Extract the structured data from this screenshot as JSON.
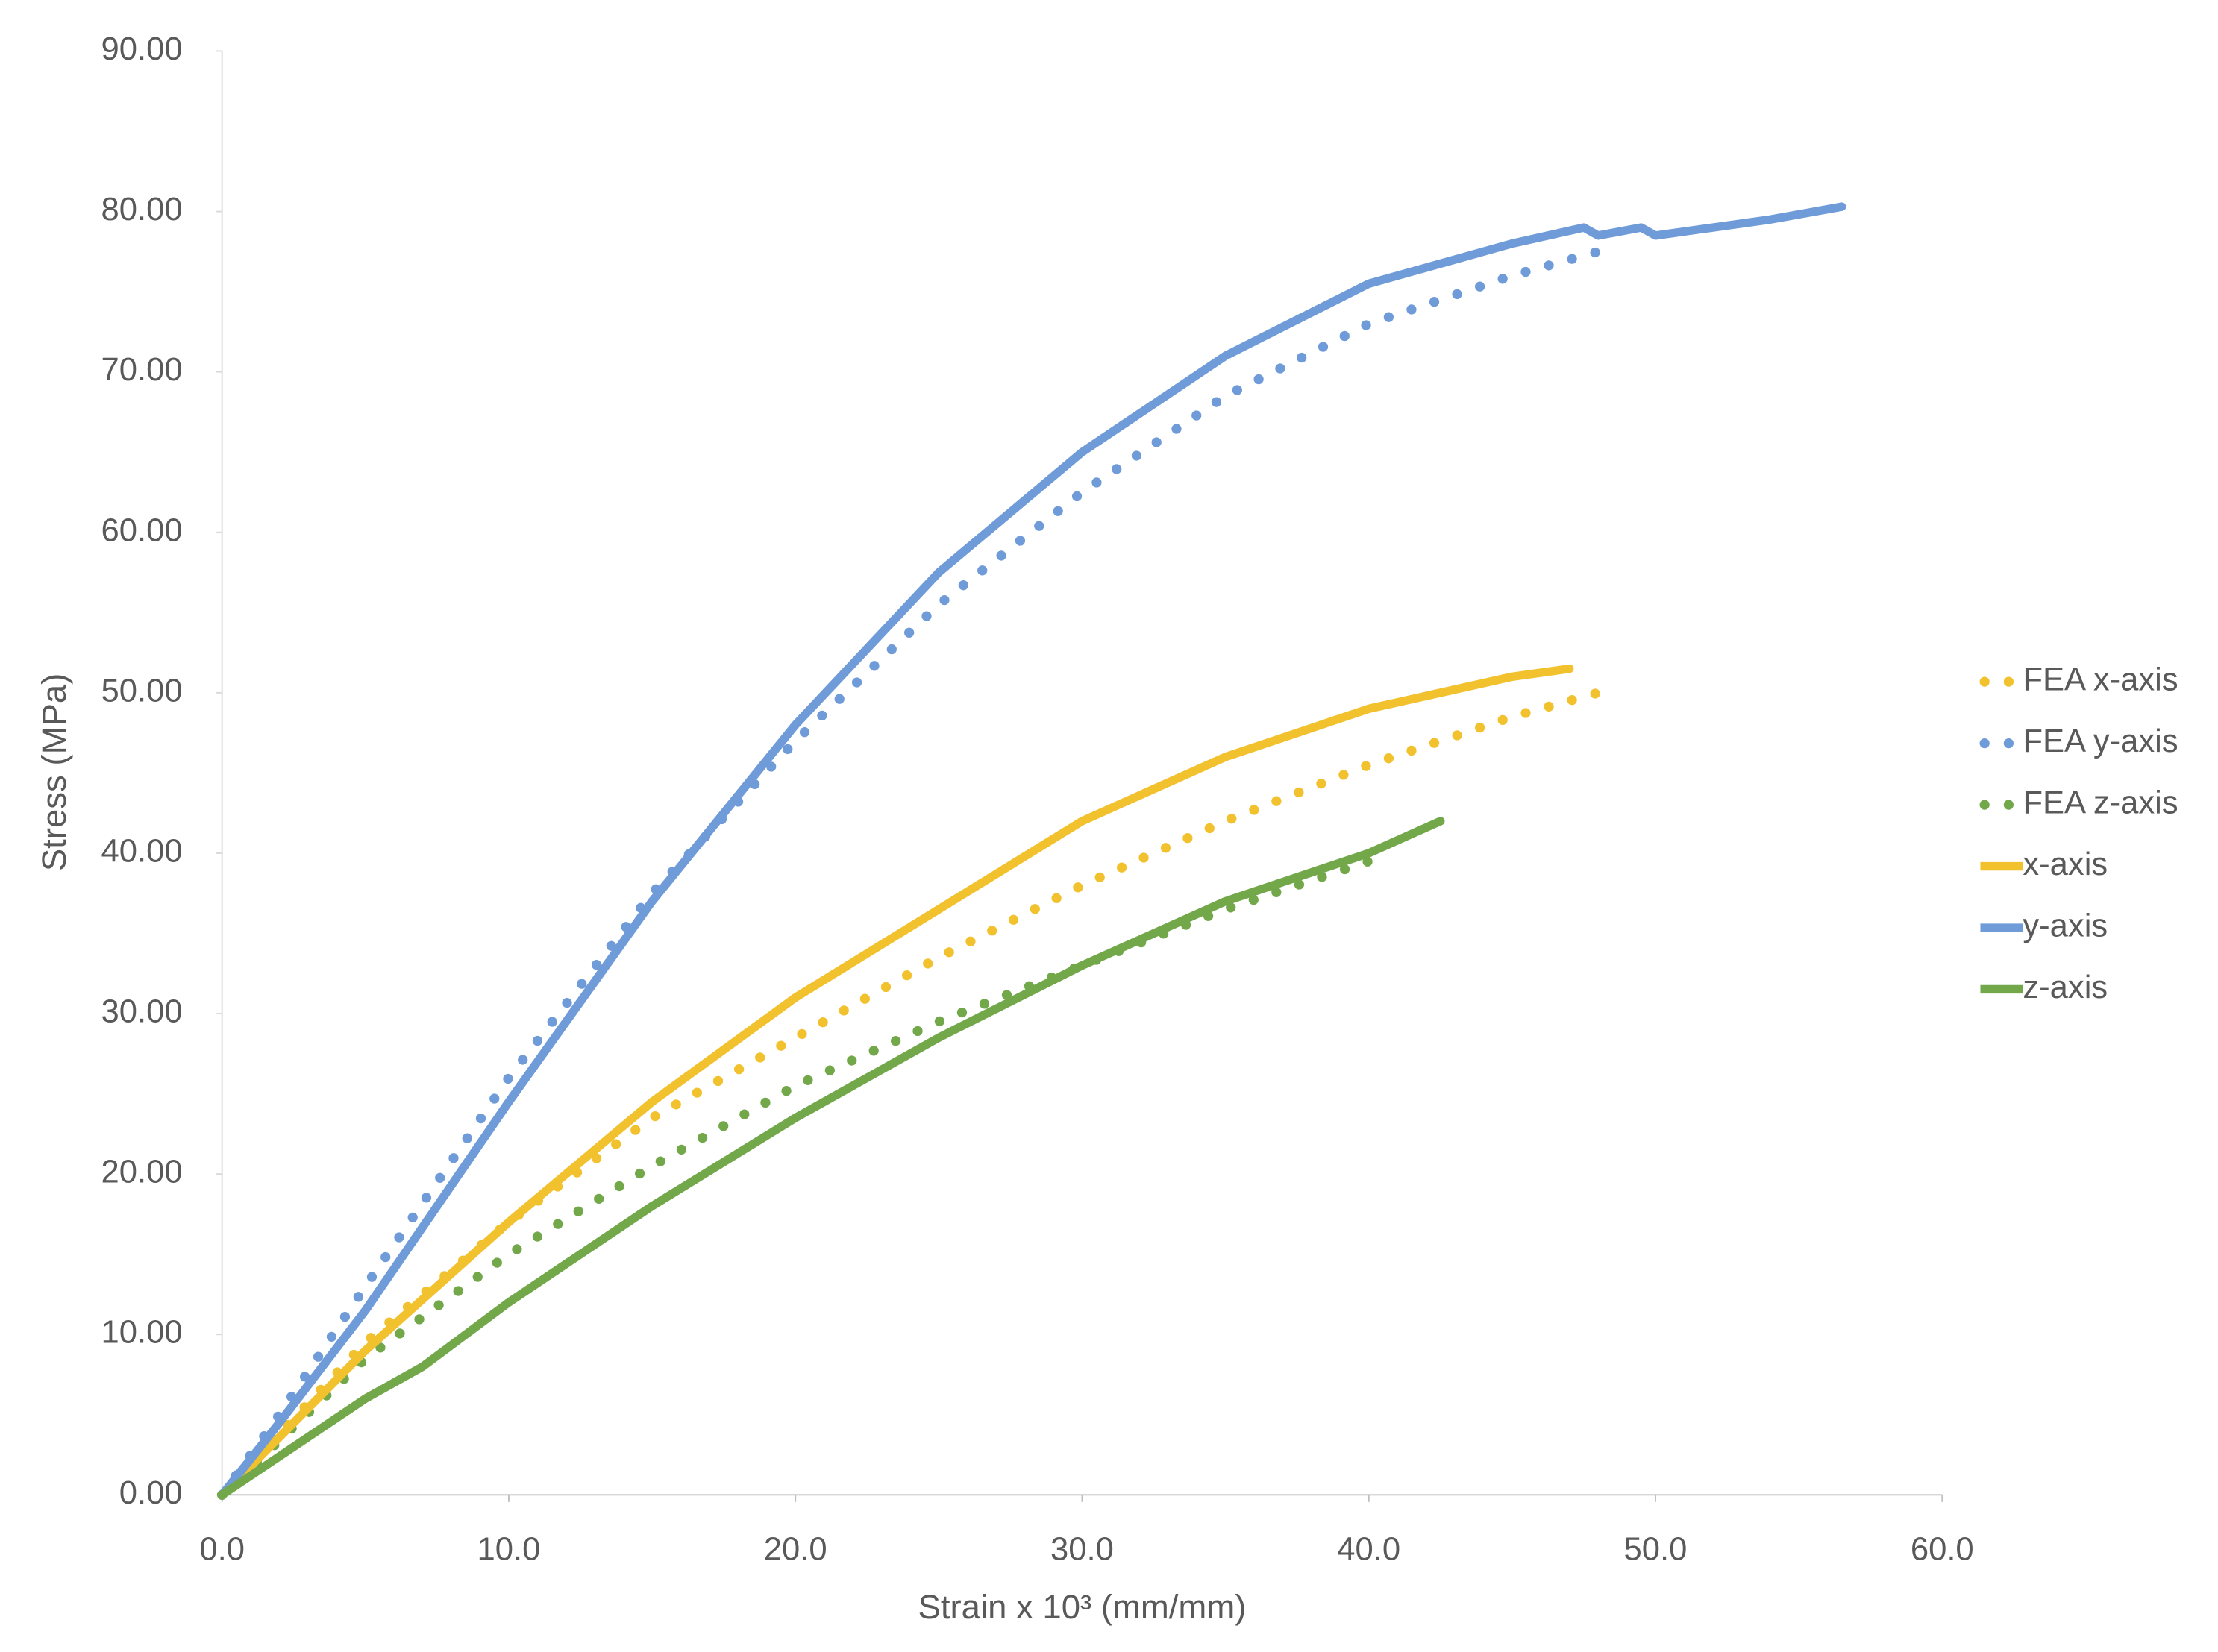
{
  "chart_data": {
    "type": "line",
    "xlabel": "Strain x 10³ (mm/mm)",
    "ylabel": "Stress (MPa)",
    "xlim": [
      0,
      60
    ],
    "ylim": [
      0,
      90
    ],
    "xticks": [
      {
        "value": 0,
        "label": "0.0"
      },
      {
        "value": 10,
        "label": "10.0"
      },
      {
        "value": 20,
        "label": "20.0"
      },
      {
        "value": 30,
        "label": "30.0"
      },
      {
        "value": 40,
        "label": "40.0"
      },
      {
        "value": 50,
        "label": "50.0"
      },
      {
        "value": 60,
        "label": "60.0"
      }
    ],
    "yticks": [
      {
        "value": 0,
        "label": "0.00"
      },
      {
        "value": 10,
        "label": "10.00"
      },
      {
        "value": 20,
        "label": "20.00"
      },
      {
        "value": 30,
        "label": "30.00"
      },
      {
        "value": 40,
        "label": "40.00"
      },
      {
        "value": 50,
        "label": "50.00"
      },
      {
        "value": 60,
        "label": "60.00"
      },
      {
        "value": 70,
        "label": "70.00"
      },
      {
        "value": 80,
        "label": "80.00"
      },
      {
        "value": 90,
        "label": "90.00"
      }
    ],
    "grid": false,
    "legend": "right",
    "series": [
      {
        "name": "FEA x-axis",
        "color": "#f2c12e",
        "style": "dotted",
        "x": [
          0,
          5,
          10,
          15,
          20,
          25,
          30,
          35,
          40,
          45,
          48
        ],
        "values": [
          0,
          9.5,
          17,
          23.5,
          28.5,
          33.5,
          38,
          42,
          45.5,
          48.5,
          50
        ]
      },
      {
        "name": "FEA y-axis",
        "color": "#6f9bd8",
        "style": "dotted",
        "x": [
          0,
          2,
          5,
          10,
          15,
          20,
          25,
          30,
          35,
          40,
          45,
          48
        ],
        "values": [
          0,
          5,
          13,
          26,
          37.5,
          47,
          55.5,
          62.5,
          68.5,
          73,
          76,
          77.5
        ]
      },
      {
        "name": "FEA z-axis",
        "color": "#72a84a",
        "style": "dotted",
        "x": [
          0,
          5,
          10,
          15,
          20,
          25,
          30,
          35,
          40
        ],
        "values": [
          0,
          8.5,
          15,
          20.5,
          25.5,
          29.5,
          33,
          36.5,
          39.5
        ]
      },
      {
        "name": "x-axis",
        "color": "#f2c12e",
        "style": "solid",
        "x": [
          0,
          5,
          10,
          15,
          20,
          25,
          30,
          35,
          40,
          45,
          47
        ],
        "values": [
          0,
          9,
          17,
          24.5,
          31,
          36.5,
          42,
          46,
          49,
          51,
          51.5
        ]
      },
      {
        "name": "y-axis",
        "color": "#6f9bd8",
        "style": "solid",
        "x": [
          0,
          2,
          5,
          10,
          15,
          20,
          25,
          30,
          35,
          40,
          45,
          47.5,
          48,
          49.5,
          50,
          52,
          54,
          56.5
        ],
        "values": [
          0,
          4.5,
          11.5,
          24.5,
          37,
          48,
          57.5,
          65,
          71,
          75.5,
          78,
          79,
          78.5,
          79,
          78.5,
          79,
          79.5,
          80.3
        ]
      },
      {
        "name": "z-axis",
        "color": "#72a84a",
        "style": "solid",
        "x": [
          0,
          5,
          7,
          10,
          15,
          20,
          25,
          30,
          35,
          40,
          42.5
        ],
        "values": [
          0,
          6,
          8,
          12,
          18,
          23.5,
          28.5,
          33,
          37,
          40,
          42
        ]
      }
    ]
  }
}
